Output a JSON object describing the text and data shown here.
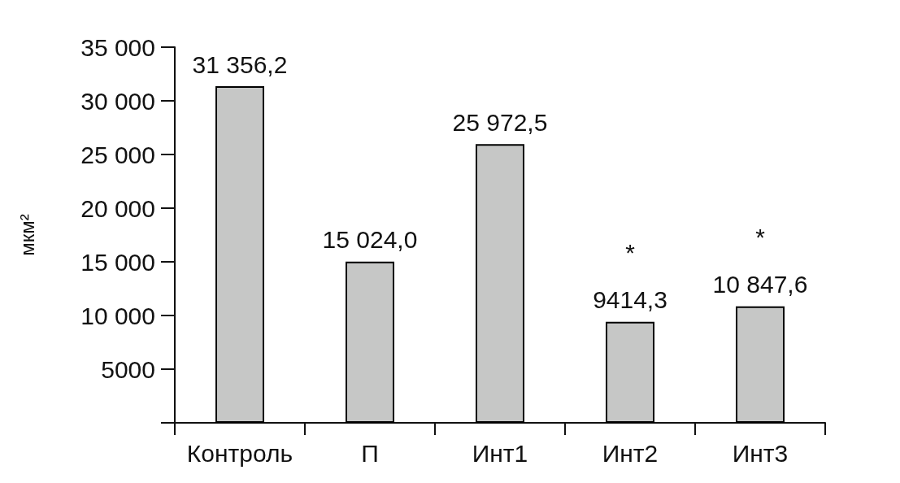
{
  "chart_data": {
    "type": "bar",
    "ylabel": "мкм²",
    "categories": [
      "Контроль",
      "П",
      "Инт1",
      "Инт2",
      "Инт3"
    ],
    "values": [
      31356.2,
      15024.0,
      25972.5,
      9414.3,
      10847.6
    ],
    "value_labels": [
      "31 356,2",
      "15 024,0",
      "25 972,5",
      "9414,3",
      "10 847,6"
    ],
    "color": "#c6c7c6",
    "ylim": [
      0,
      35000
    ],
    "yticks": [
      {
        "value": 0,
        "label": null
      },
      5000,
      {
        "value": 10000,
        "label": "10 000"
      },
      {
        "value": 15000,
        "label": "15 000"
      },
      {
        "value": 20000,
        "label": "20 000"
      },
      {
        "value": 25000,
        "label": "25 000"
      },
      {
        "value": 30000,
        "label": "30 000"
      },
      {
        "value": 35000,
        "label": "35 000"
      }
    ],
    "annotations": [
      {
        "text": "*",
        "x": "Инт2",
        "y": 9414.3
      },
      {
        "text": "*",
        "x": "Инт3",
        "y": 10847.6
      }
    ],
    "grid": false
  }
}
